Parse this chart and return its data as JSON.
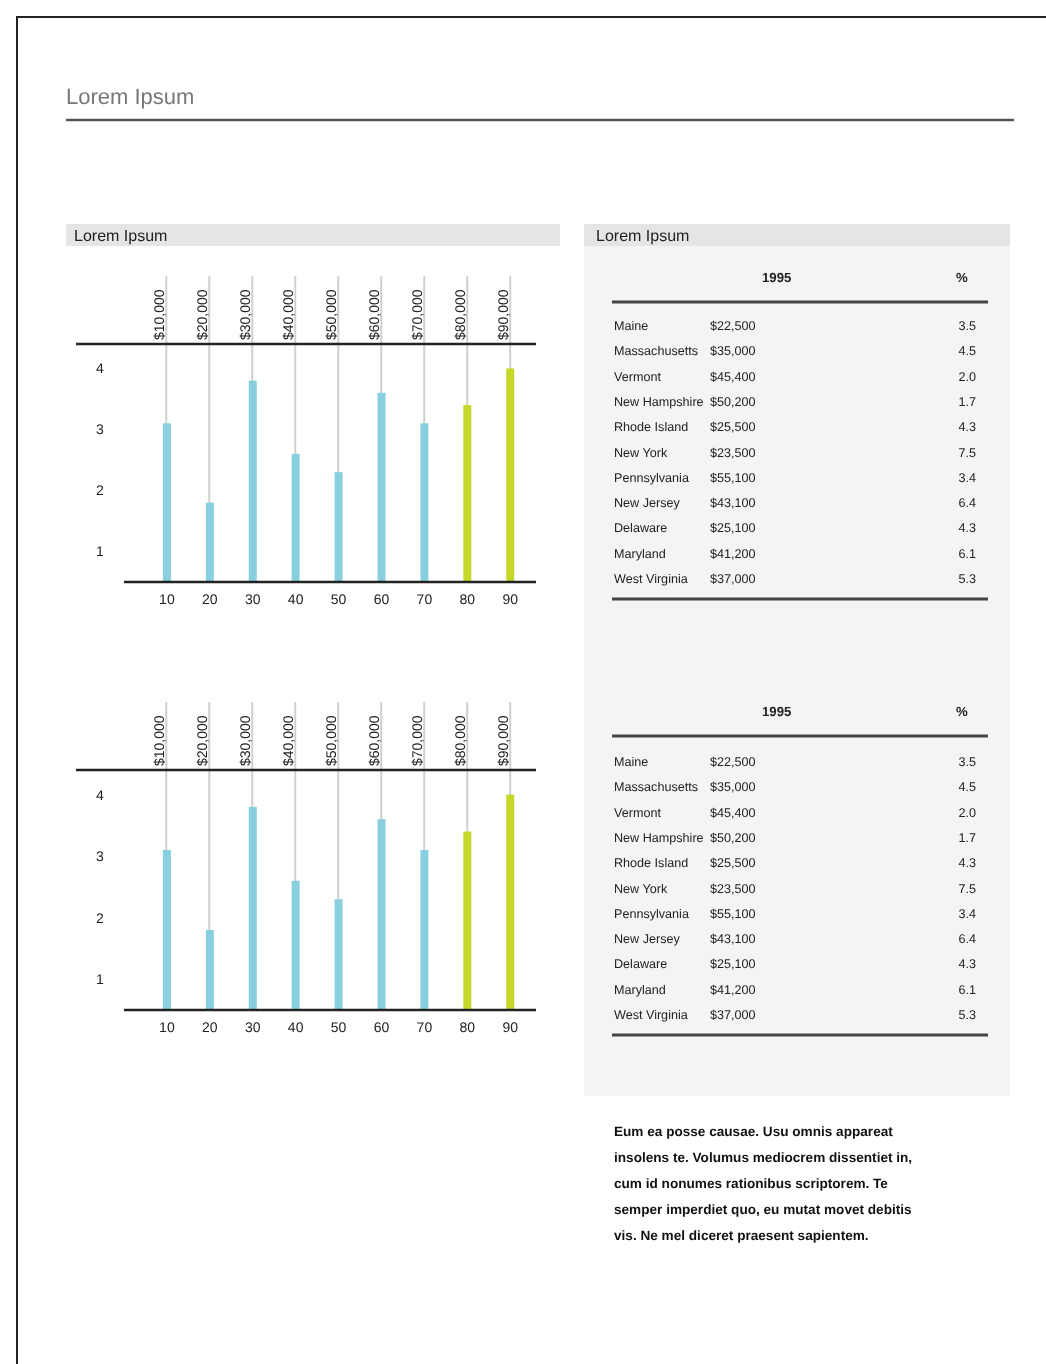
{
  "chart_data": [
    {
      "type": "other",
      "title": "Lorem Ipsum"
    },
    {
      "type": "bar",
      "title": "Lorem Ipsum",
      "x": [
        10,
        20,
        30,
        40,
        50,
        60,
        70,
        80,
        90
      ],
      "values": [
        3.1,
        1.8,
        3.8,
        2.6,
        2.3,
        3.6,
        3.1,
        3.4,
        4.0
      ],
      "colors": [
        "#88cfe0",
        "#88cfe0",
        "#88cfe0",
        "#88cfe0",
        "#88cfe0",
        "#88cfe0",
        "#88cfe0",
        "#c5d82a",
        "#c5d82a"
      ],
      "xlim": [
        0,
        96
      ],
      "xticks": [
        10,
        20,
        30,
        40,
        50,
        60,
        70,
        80,
        90
      ],
      "x2lim": [
        -11000,
        96000
      ],
      "x2ticks": [
        {
          "value": 10000,
          "label": "$10,000"
        },
        {
          "value": 20000,
          "label": "$20,000"
        },
        {
          "value": 30000,
          "label": "$30,000"
        },
        {
          "value": 40000,
          "label": "$40,000"
        },
        {
          "value": 50000,
          "label": "$50,000"
        },
        {
          "value": 60000,
          "label": "$60,000"
        },
        {
          "value": 70000,
          "label": "$70,000"
        },
        {
          "value": 80000,
          "label": "$80,000"
        },
        {
          "value": 90000,
          "label": "$90,000"
        }
      ],
      "ylim": [
        0.5,
        4.4
      ],
      "yticks": [
        1,
        2,
        3,
        4
      ],
      "grid": "x2"
    },
    {
      "type": "other",
      "title": "Lorem Ipsum",
      "categories": [
        "Maine",
        "Massachusetts",
        "Vermont",
        "New Hampshire",
        "Rhode Island",
        "New York",
        "Pennsylvania",
        "New Jersey",
        "Delaware",
        "Maryland",
        "West Virginia"
      ],
      "series": [
        {
          "name": "1995",
          "values": [
            22500,
            35000,
            45400,
            50200,
            25500,
            23500,
            55100,
            43100,
            25100,
            41200,
            37000
          ],
          "value_labels": [
            "$22,500",
            "$35,000",
            "$45,400",
            "$50,200",
            "$25,500",
            "$23,500",
            "$55,100",
            "$43,100",
            "$25,100",
            "$41,200",
            "$37,000"
          ]
        },
        {
          "name": "%",
          "values": [
            3.5,
            4.5,
            2.0,
            1.7,
            4.3,
            7.5,
            3.4,
            6.4,
            4.3,
            6.1,
            5.3
          ],
          "value_labels": [
            "3.5",
            "4.5",
            "2.0",
            "1.7",
            "4.3",
            "7.5",
            "3.4",
            "6.4",
            "4.3",
            "6.1",
            "5.3"
          ]
        }
      ]
    },
    {
      "type": "bar",
      "x": [
        10,
        20,
        30,
        40,
        50,
        60,
        70,
        80,
        90
      ],
      "values": [
        3.1,
        1.8,
        3.8,
        2.6,
        2.3,
        3.6,
        3.1,
        3.4,
        4.0
      ],
      "colors": [
        "#88cfe0",
        "#88cfe0",
        "#88cfe0",
        "#88cfe0",
        "#88cfe0",
        "#88cfe0",
        "#88cfe0",
        "#c5d82a",
        "#c5d82a"
      ],
      "xlim": [
        0,
        96
      ],
      "xticks": [
        10,
        20,
        30,
        40,
        50,
        60,
        70,
        80,
        90
      ],
      "x2lim": [
        -11000,
        96000
      ],
      "x2ticks": [
        {
          "value": 10000,
          "label": "$10,000"
        },
        {
          "value": 20000,
          "label": "$20,000"
        },
        {
          "value": 30000,
          "label": "$30,000"
        },
        {
          "value": 40000,
          "label": "$40,000"
        },
        {
          "value": 50000,
          "label": "$50,000"
        },
        {
          "value": 60000,
          "label": "$60,000"
        },
        {
          "value": 70000,
          "label": "$70,000"
        },
        {
          "value": 80000,
          "label": "$80,000"
        },
        {
          "value": 90000,
          "label": "$90,000"
        }
      ],
      "ylim": [
        0.5,
        4.4
      ],
      "yticks": [
        1,
        2,
        3,
        4
      ],
      "grid": "x2"
    },
    {
      "type": "other",
      "categories": [
        "Maine",
        "Massachusetts",
        "Vermont",
        "New Hampshire",
        "Rhode Island",
        "New York",
        "Pennsylvania",
        "New Jersey",
        "Delaware",
        "Maryland",
        "West Virginia"
      ],
      "series": [
        {
          "name": "1995",
          "values": [
            22500,
            35000,
            45400,
            50200,
            25500,
            23500,
            55100,
            43100,
            25100,
            41200,
            37000
          ],
          "value_labels": [
            "$22,500",
            "$35,000",
            "$45,400",
            "$50,200",
            "$25,500",
            "$23,500",
            "$55,100",
            "$43,100",
            "$25,100",
            "$41,200",
            "$37,000"
          ]
        },
        {
          "name": "%",
          "values": [
            3.5,
            4.5,
            2.0,
            1.7,
            4.3,
            7.5,
            3.4,
            6.4,
            4.3,
            6.1,
            5.3
          ],
          "value_labels": [
            "3.5",
            "4.5",
            "2.0",
            "1.7",
            "4.3",
            "7.5",
            "3.4",
            "6.4",
            "4.3",
            "6.1",
            "5.3"
          ]
        }
      ],
      "annotations": [
        "Eum ea posse causae. Usu omnis appareat insolens te. Volumus mediocrem dissentiet in, cum id nonumes rationibus scriptorem. Te semper imperdiet quo, eu mutat movet debitis vis. Ne mel diceret praesent sapientem."
      ]
    }
  ]
}
